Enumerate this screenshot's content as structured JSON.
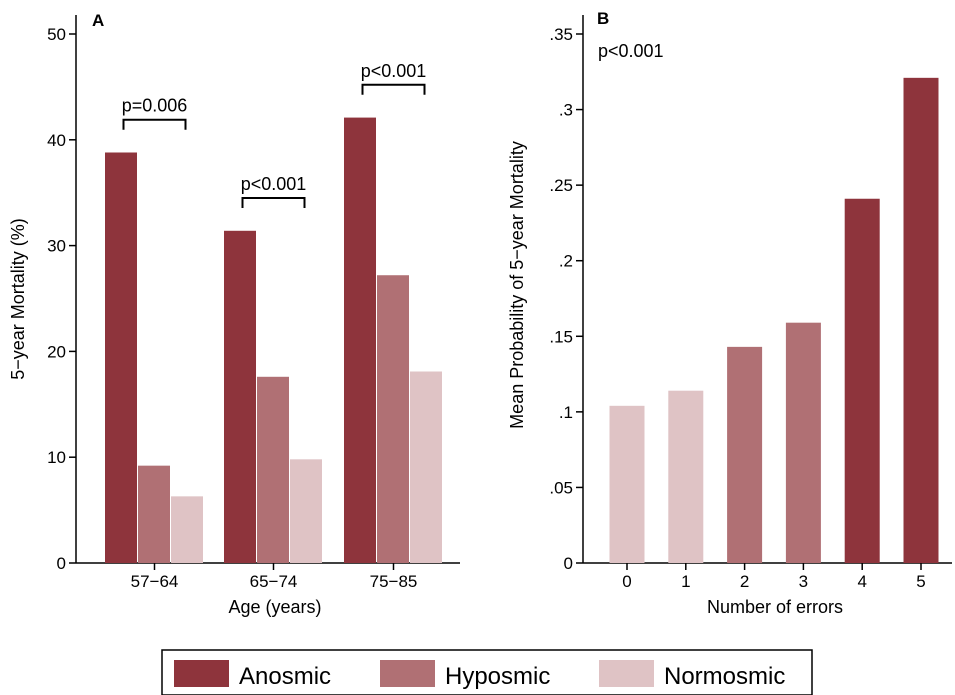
{
  "colors": {
    "anosmic": "#8e343c",
    "hyposmic": "#b07074",
    "normosmic": "#dfc3c5"
  },
  "legend": {
    "placement": "bottom",
    "items": [
      {
        "label": "Anosmic",
        "color_key": "anosmic"
      },
      {
        "label": "Hyposmic",
        "color_key": "hyposmic"
      },
      {
        "label": "Normosmic",
        "color_key": "normosmic"
      }
    ]
  },
  "chart_data": [
    {
      "panel_label": "A",
      "type": "bar",
      "xlabel": "Age (years)",
      "ylabel": "5−year Mortality (%)",
      "ylim": [
        0,
        50
      ],
      "yticks": [
        0,
        10,
        20,
        30,
        40,
        50
      ],
      "ytick_labels": [
        "0",
        "10",
        "20",
        "30",
        "40",
        "50"
      ],
      "grid": false,
      "categories": [
        "57−64",
        "65−74",
        "75−85"
      ],
      "series": [
        {
          "color_key": "anosmic",
          "values": [
            38.8,
            31.4,
            42.1
          ]
        },
        {
          "color_key": "hyposmic",
          "values": [
            9.2,
            17.6,
            27.2
          ]
        },
        {
          "color_key": "normosmic",
          "values": [
            6.3,
            9.8,
            18.1
          ]
        }
      ],
      "annotations": [
        {
          "category": 0,
          "text": "p=0.006",
          "bracket_y": 41.9
        },
        {
          "category": 1,
          "text": "p<0.001",
          "bracket_y": 34.5
        },
        {
          "category": 2,
          "text": "p<0.001",
          "bracket_y": 45.2
        }
      ]
    },
    {
      "panel_label": "B",
      "type": "bar",
      "xlabel": "Number of errors",
      "ylabel": "Mean Probability of 5−year Mortality",
      "ylim": [
        0,
        0.35
      ],
      "yticks": [
        0,
        0.05,
        0.1,
        0.15,
        0.2,
        0.25,
        0.3,
        0.35
      ],
      "ytick_labels": [
        "0",
        ".05",
        ".1",
        ".15",
        ".2",
        ".25",
        ".3",
        ".35"
      ],
      "grid": false,
      "categories": [
        "0",
        "1",
        "2",
        "3",
        "4",
        "5"
      ],
      "values": [
        0.104,
        0.114,
        0.143,
        0.159,
        0.241,
        0.321
      ],
      "color_keys": [
        "normosmic",
        "normosmic",
        "hyposmic",
        "hyposmic",
        "anosmic",
        "anosmic"
      ],
      "annotation": "p<0.001"
    }
  ]
}
